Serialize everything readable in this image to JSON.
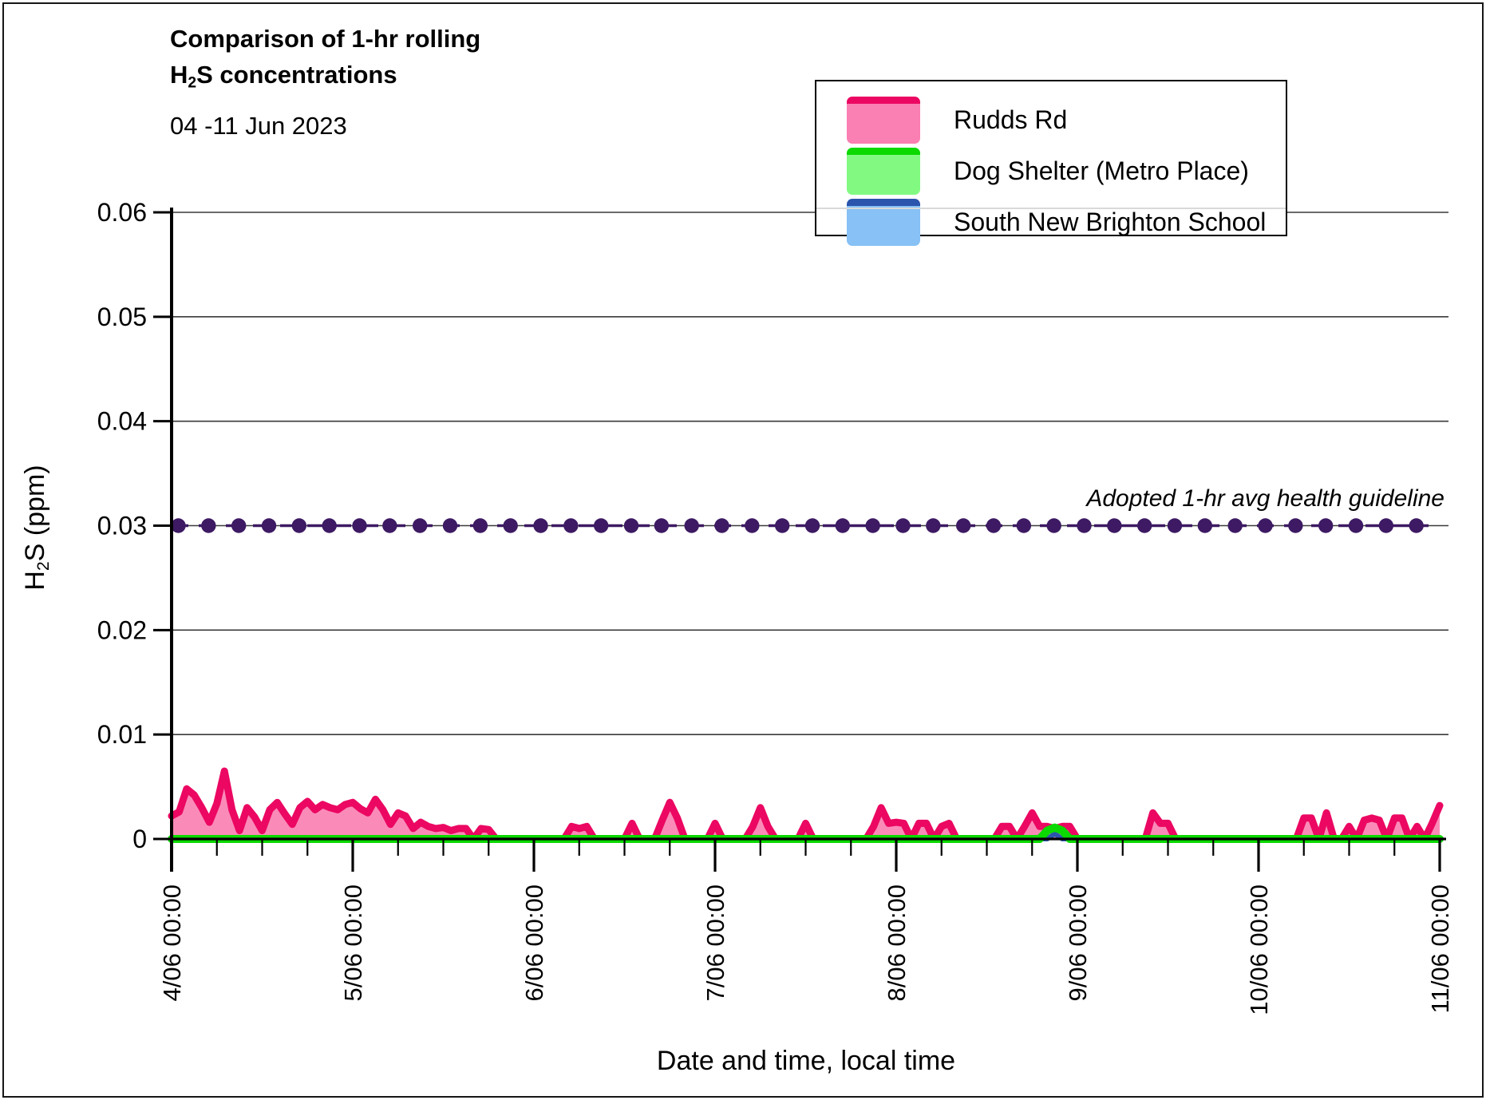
{
  "page": {
    "background": "#ffffff",
    "border_color": "#161616"
  },
  "header": {
    "title_line1": "Comparison of 1-hr rolling",
    "formula": {
      "prefix": "H",
      "sub": "2",
      "suffix": "S concentrations"
    },
    "subtitle": "04 -11 Jun 2023"
  },
  "legend": {
    "items": [
      {
        "label": "Rudds Rd",
        "fill": "#FA7FB2",
        "line": "#EB0762"
      },
      {
        "label": "Dog Shelter (Metro Place)",
        "fill": "#82FA82",
        "line": "#0BD900"
      },
      {
        "label": "South New Brighton School",
        "fill": "#87C1F5",
        "line": "#2B55AD"
      }
    ]
  },
  "chart_data": {
    "type": "area",
    "title": "Comparison of 1-hr rolling H2S concentrations",
    "subtitle": "04 -11 Jun 2023",
    "xlabel": "Date and time, local time",
    "ylabel": "H2S (ppm)",
    "ylabel_parts": {
      "prefix": "H",
      "sub": "2",
      "suffix": "S (ppm)"
    },
    "ylim": [
      0,
      0.06
    ],
    "grid": true,
    "legend_position": "top-right",
    "x_total_hours": 168,
    "x_step_hours": 1,
    "x_minor_tick_hours": 6,
    "x_major_tick_hours": 24,
    "y_ticks": [
      {
        "value": 0,
        "label": "0"
      },
      {
        "value": 0.01,
        "label": "0.01"
      },
      {
        "value": 0.02,
        "label": "0.02"
      },
      {
        "value": 0.03,
        "label": "0.03"
      },
      {
        "value": 0.04,
        "label": "0.04"
      },
      {
        "value": 0.05,
        "label": "0.05"
      },
      {
        "value": 0.06,
        "label": "0.06"
      }
    ],
    "x_ticks": [
      {
        "hour": 0,
        "label": "4/06 00:00"
      },
      {
        "hour": 24,
        "label": "5/06 00:00"
      },
      {
        "hour": 48,
        "label": "6/06 00:00"
      },
      {
        "hour": 72,
        "label": "7/06 00:00"
      },
      {
        "hour": 96,
        "label": "8/06 00:00"
      },
      {
        "hour": 120,
        "label": "9/06 00:00"
      },
      {
        "hour": 144,
        "label": "10/06 00:00"
      },
      {
        "hour": 168,
        "label": "11/06 00:00"
      }
    ],
    "guideline": {
      "label": "Adopted 1-hr avg health guideline",
      "value": 0.03,
      "color": "#3D1A63",
      "style": "dashed-with-dots",
      "marker_start_hour": 0.9,
      "marker_step_hours": 4,
      "marker_end_hour": 167
    },
    "gridline_color": "#3a3a3a",
    "series": [
      {
        "name": "Rudds Rd",
        "line": "#EB0762",
        "fill": "#FA8BB8",
        "units": "ppm",
        "values": [
          0.0022,
          0.0026,
          0.0048,
          0.0042,
          0.003,
          0.0016,
          0.0034,
          0.0065,
          0.0028,
          0.0008,
          0.003,
          0.0021,
          0.0008,
          0.0028,
          0.0035,
          0.0024,
          0.0014,
          0.003,
          0.0036,
          0.0028,
          0.0033,
          0.003,
          0.0028,
          0.0033,
          0.0035,
          0.0029,
          0.0025,
          0.0038,
          0.0028,
          0.0014,
          0.0025,
          0.0022,
          0.001,
          0.0016,
          0.0012,
          0.001,
          0.0011,
          0.0008,
          0.001,
          0.001,
          0,
          0.001,
          0.0009,
          0,
          0,
          0,
          0,
          0,
          0,
          0,
          0,
          0,
          0,
          0.0012,
          0.001,
          0.0012,
          0,
          0,
          0,
          0,
          0,
          0.0015,
          0,
          0,
          0,
          0.0018,
          0.0035,
          0.002,
          0,
          0,
          0,
          0,
          0.0015,
          0,
          0,
          0,
          0,
          0.0012,
          0.003,
          0.0012,
          0,
          0,
          0,
          0,
          0.0015,
          0,
          0,
          0,
          0,
          0,
          0,
          0,
          0,
          0.0012,
          0.003,
          0.0015,
          0.0016,
          0.0015,
          0,
          0.0015,
          0.0015,
          0,
          0.0012,
          0.0015,
          0,
          0,
          0,
          0,
          0,
          0,
          0.0012,
          0.0012,
          0,
          0.0012,
          0.0025,
          0.0012,
          0.0012,
          0.001,
          0.0012,
          0.0012,
          0,
          0,
          0,
          0,
          0,
          0,
          0,
          0,
          0,
          0,
          0.0025,
          0.0015,
          0.0015,
          0,
          0,
          0,
          0,
          0,
          0,
          0,
          0,
          0,
          0,
          0,
          0,
          0,
          0,
          0,
          0,
          0,
          0.002,
          0.002,
          0,
          0.0025,
          0,
          0,
          0.0012,
          0,
          0.0018,
          0.002,
          0.0018,
          0,
          0.002,
          0.002,
          0,
          0.0012,
          0,
          0.0015,
          0.0032
        ]
      },
      {
        "name": "Dog Shelter (Metro Place)",
        "line": "#0BD900",
        "fill": "#82FA82",
        "units": "ppm",
        "values": [
          0,
          0,
          0,
          0,
          0,
          0,
          0,
          0,
          0,
          0,
          0,
          0,
          0,
          0,
          0,
          0,
          0,
          0,
          0,
          0,
          0,
          0,
          0,
          0,
          0,
          0,
          0,
          0,
          0,
          0,
          0,
          0,
          0,
          0,
          0,
          0,
          0,
          0,
          0,
          0,
          0,
          0,
          0,
          0,
          0,
          0,
          0,
          0,
          0,
          0,
          0,
          0,
          0,
          0,
          0,
          0,
          0,
          0,
          0,
          0,
          0,
          0,
          0,
          0,
          0,
          0,
          0,
          0,
          0,
          0,
          0,
          0,
          0,
          0,
          0,
          0,
          0,
          0,
          0,
          0,
          0,
          0,
          0,
          0,
          0,
          0,
          0,
          0,
          0,
          0,
          0,
          0,
          0,
          0,
          0,
          0,
          0,
          0,
          0,
          0,
          0,
          0,
          0,
          0,
          0,
          0,
          0,
          0,
          0,
          0,
          0,
          0,
          0,
          0,
          0,
          0,
          0.0008,
          0.0011,
          0.0008,
          0,
          0,
          0,
          0,
          0,
          0,
          0,
          0,
          0,
          0,
          0,
          0,
          0,
          0,
          0,
          0,
          0,
          0,
          0,
          0,
          0,
          0,
          0,
          0,
          0,
          0,
          0,
          0,
          0,
          0,
          0,
          0,
          0,
          0,
          0,
          0,
          0,
          0,
          0,
          0,
          0,
          0,
          0,
          0,
          0,
          0,
          0,
          0,
          0,
          0
        ]
      },
      {
        "name": "South New Brighton School",
        "line": "#2B55AD",
        "fill": "#87C1F5",
        "units": "ppm",
        "values": [
          0,
          0,
          0,
          0,
          0,
          0,
          0,
          0,
          0,
          0,
          0,
          0,
          0,
          0,
          0,
          0,
          0,
          0,
          0,
          0,
          0,
          0,
          0,
          0,
          0,
          0,
          0,
          0,
          0,
          0,
          0,
          0,
          0,
          0,
          0,
          0,
          0,
          0,
          0,
          0,
          0,
          0,
          0,
          0,
          0,
          0,
          0,
          0,
          0,
          0,
          0,
          0,
          0,
          0,
          0,
          0,
          0,
          0,
          0,
          0,
          0,
          0,
          0,
          0,
          0,
          0,
          0,
          0,
          0,
          0,
          0,
          0,
          0,
          0,
          0,
          0,
          0,
          0,
          0,
          0,
          0,
          0,
          0,
          0,
          0,
          0,
          0,
          0,
          0,
          0,
          0,
          0,
          0,
          0,
          0,
          0,
          0,
          0,
          0,
          0,
          0,
          0,
          0,
          0,
          0,
          0,
          0,
          0,
          0,
          0,
          0,
          0,
          0,
          0,
          0,
          0,
          0,
          0.0005,
          0,
          0,
          0,
          0,
          0,
          0,
          0,
          0,
          0,
          0,
          0,
          0,
          0,
          0,
          0,
          0,
          0,
          0,
          0,
          0,
          0,
          0,
          0,
          0,
          0,
          0,
          0,
          0,
          0,
          0,
          0,
          0,
          0,
          0,
          0,
          0,
          0,
          0,
          0,
          0,
          0,
          0,
          0,
          0,
          0,
          0,
          0,
          0,
          0,
          0,
          0
        ]
      }
    ]
  }
}
